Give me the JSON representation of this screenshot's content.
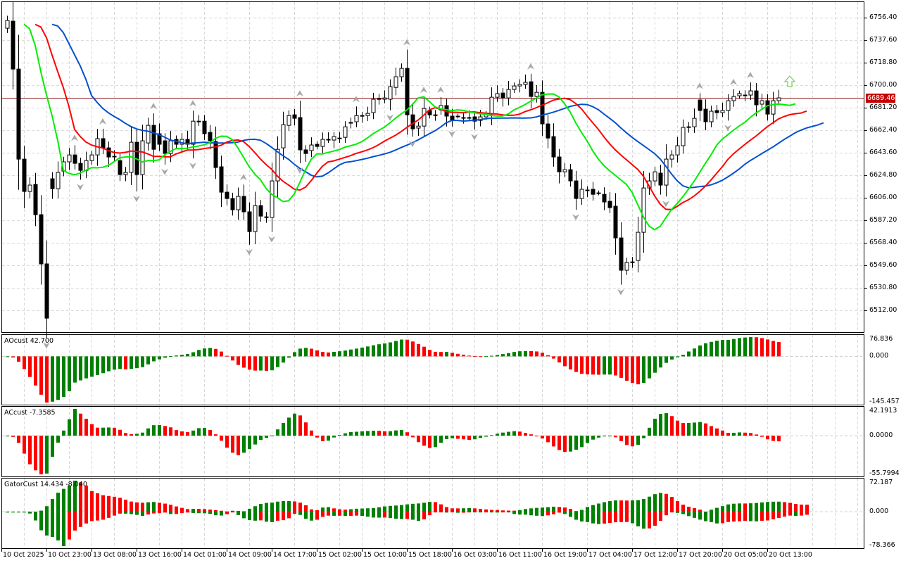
{
  "colors": {
    "bull_body": "#ffffff",
    "bear_body": "#000000",
    "lips": "#00ee00",
    "teeth": "#ff0000",
    "jaw": "#0050d0",
    "hist_up": "#008000",
    "hist_down": "#ff0000",
    "price_tag": "#c80000",
    "grid": "#d8d8d8"
  },
  "price_axis": {
    "ticks": [
      "6756.40",
      "6737.60",
      "6718.80",
      "6700.00",
      "6681.20",
      "6662.40",
      "6643.60",
      "6624.80",
      "6606.00",
      "6587.20",
      "6568.40",
      "6549.60",
      "6530.80",
      "6512.00"
    ],
    "current_price": "6689.46"
  },
  "time_axis": {
    "labels": [
      "10 Oct 2025",
      "10 Oct 23:00",
      "13 Oct 08:00",
      "13 Oct 16:00",
      "14 Oct 01:00",
      "14 Oct 09:00",
      "14 Oct 17:00",
      "15 Oct 02:00",
      "15 Oct 10:00",
      "15 Oct 18:00",
      "16 Oct 03:00",
      "16 Oct 11:00",
      "16 Oct 19:00",
      "17 Oct 04:00",
      "17 Oct 12:00",
      "17 Oct 20:00",
      "20 Oct 05:00",
      "20 Oct 13:00"
    ]
  },
  "indicators": {
    "ao": {
      "label": "AOcust 42.700",
      "max": "76.836",
      "zero": "0.000",
      "min": "-145.457"
    },
    "ac": {
      "label": "ACcust -7.3585",
      "max": "42.1913",
      "zero": "0.0000",
      "min": "-55.7994"
    },
    "gator": {
      "label": "GatorCust 14.434 -8.040",
      "max": "72.187",
      "zero": "0.000",
      "min": "-78.366"
    }
  },
  "chart_data": {
    "type": "candlestick",
    "ylim": [
      6493.8,
      6770.0
    ],
    "alligator": {
      "jaw": [
        13,
        8
      ],
      "teeth": [
        8,
        5
      ],
      "lips": [
        5,
        3
      ]
    },
    "signal": "buy-arrow",
    "candles_oc": [
      [
        6747.6,
        6754.1
      ],
      [
        6753.5,
        6713.5
      ],
      [
        6713.5,
        6638.3
      ],
      [
        6638.3,
        6611.3
      ],
      [
        6611.3,
        6616.6
      ],
      [
        6617.2,
        6591.9
      ],
      [
        6591.9,
        6550.8
      ],
      [
        6550.8,
        6505.5
      ],
      [
        6621.9,
        6613.6
      ],
      [
        6613.6,
        6627.2
      ],
      [
        6628.3,
        6636.0
      ],
      [
        6636.0,
        6641.8
      ],
      [
        6641.8,
        6634.8
      ],
      [
        6634.8,
        6628.9
      ],
      [
        6628.9,
        6637.1
      ],
      [
        6637.1,
        6641.8
      ],
      [
        6641.8,
        6655.4
      ],
      [
        6655.4,
        6647.7
      ],
      [
        6647.7,
        6640.1
      ],
      [
        6640.7,
        6640.7
      ],
      [
        6637.1,
        6625.4
      ],
      [
        6625.4,
        6627.2
      ],
      [
        6627.2,
        6652.4
      ],
      [
        6652.4,
        6625.4
      ],
      [
        6625.4,
        6653.6
      ],
      [
        6651.8,
        6666.5
      ],
      [
        6666.5,
        6646.5
      ],
      [
        6659.5,
        6650.7
      ],
      [
        6653.6,
        6643.0
      ],
      [
        6643.0,
        6653.6
      ],
      [
        6654.8,
        6650.7
      ],
      [
        6650.7,
        6654.8
      ],
      [
        6654.8,
        6650.7
      ],
      [
        6650.7,
        6670.0
      ],
      [
        6670.0,
        6670.0
      ],
      [
        6670.0,
        6659.5
      ],
      [
        6660.6,
        6653.6
      ],
      [
        6653.0,
        6631.3
      ],
      [
        6631.9,
        6610.7
      ],
      [
        6610.7,
        6605.4
      ],
      [
        6605.4,
        6596.0
      ],
      [
        6596.0,
        6607.2
      ],
      [
        6607.2,
        6594.3
      ],
      [
        6594.3,
        6577.8
      ],
      [
        6577.8,
        6599.5
      ],
      [
        6599.5,
        6590.7
      ],
      [
        6590.1,
        6590.1
      ],
      [
        6589.6,
        6620.1
      ],
      [
        6620.1,
        6646.5
      ],
      [
        6647.7,
        6667.1
      ],
      [
        6666.5,
        6674.7
      ],
      [
        6675.3,
        6672.4
      ],
      [
        6673.0,
        6646.0
      ],
      [
        6646.0,
        6643.0
      ],
      [
        6645.4,
        6650.1
      ],
      [
        6650.7,
        6648.9
      ],
      [
        6648.9,
        6654.8
      ],
      [
        6654.8,
        6654.8
      ],
      [
        6654.2,
        6657.1
      ],
      [
        6655.9,
        6655.9
      ],
      [
        6656.5,
        6665.3
      ],
      [
        6668.9,
        6668.9
      ],
      [
        6669.5,
        6674.7
      ],
      [
        6674.7,
        6674.7
      ],
      [
        6674.7,
        6676.5
      ],
      [
        6677.1,
        6688.3
      ],
      [
        6688.8,
        6688.8
      ],
      [
        6688.3,
        6689.4
      ],
      [
        6688.3,
        6698.8
      ],
      [
        6698.2,
        6707.1
      ],
      [
        6707.1,
        6714.1
      ],
      [
        6714.1,
        6675.3
      ],
      [
        6675.3,
        6663.6
      ],
      [
        6664.2,
        6665.9
      ],
      [
        6665.9,
        6680.6
      ],
      [
        6678.9,
        6675.3
      ],
      [
        6675.3,
        6675.3
      ],
      [
        6679.4,
        6683.0
      ],
      [
        6683.0,
        6674.2
      ],
      [
        6674.2,
        6670.6
      ],
      [
        6674.2,
        6674.2
      ],
      [
        6673.0,
        6673.0
      ],
      [
        6673.0,
        6673.0
      ],
      [
        6673.6,
        6670.0
      ],
      [
        6670.6,
        6673.6
      ],
      [
        6673.6,
        6675.9
      ],
      [
        6675.9,
        6690.0
      ],
      [
        6690.0,
        6693.0
      ],
      [
        6693.5,
        6689.4
      ],
      [
        6689.4,
        6696.5
      ],
      [
        6696.5,
        6699.4
      ],
      [
        6699.4,
        6700.6
      ],
      [
        6700.6,
        6702.4
      ],
      [
        6702.9,
        6690.6
      ],
      [
        6690.6,
        6694.1
      ],
      [
        6694.1,
        6667.7
      ],
      [
        6667.7,
        6655.9
      ],
      [
        6657.1,
        6640.1
      ],
      [
        6640.1,
        6627.7
      ],
      [
        6627.7,
        6629.5
      ],
      [
        6629.5,
        6620.1
      ],
      [
        6620.1,
        6605.4
      ],
      [
        6605.4,
        6613.1
      ],
      [
        6612.5,
        6612.5
      ],
      [
        6613.1,
        6608.9
      ],
      [
        6610.1,
        6610.1
      ],
      [
        6608.9,
        6602.5
      ],
      [
        6603.1,
        6597.8
      ],
      [
        6599.0,
        6572.5
      ],
      [
        6572.5,
        6545.5
      ],
      [
        6545.5,
        6552.0
      ],
      [
        6552.5,
        6552.5
      ],
      [
        6553.7,
        6577.2
      ],
      [
        6577.2,
        6614.2
      ],
      [
        6614.2,
        6620.1
      ],
      [
        6620.1,
        6627.7
      ],
      [
        6626.6,
        6616.6
      ],
      [
        6616.6,
        6638.3
      ],
      [
        6638.3,
        6641.8
      ],
      [
        6641.8,
        6649.5
      ],
      [
        6649.5,
        6664.8
      ],
      [
        6665.3,
        6665.3
      ],
      [
        6665.3,
        6672.4
      ],
      [
        6687.7,
        6678.9
      ],
      [
        6680.0,
        6669.5
      ],
      [
        6669.5,
        6678.3
      ],
      [
        6678.9,
        6677.1
      ],
      [
        6677.1,
        6678.9
      ],
      [
        6678.9,
        6687.1
      ],
      [
        6687.1,
        6690.6
      ],
      [
        6691.2,
        6693.0
      ],
      [
        6691.8,
        6691.8
      ],
      [
        6691.8,
        6695.3
      ],
      [
        6695.3,
        6683.6
      ],
      [
        6684.2,
        6687.1
      ],
      [
        6687.1,
        6675.9
      ],
      [
        6675.9,
        6687.1
      ],
      [
        6687.1,
        6689.46
      ]
    ]
  }
}
